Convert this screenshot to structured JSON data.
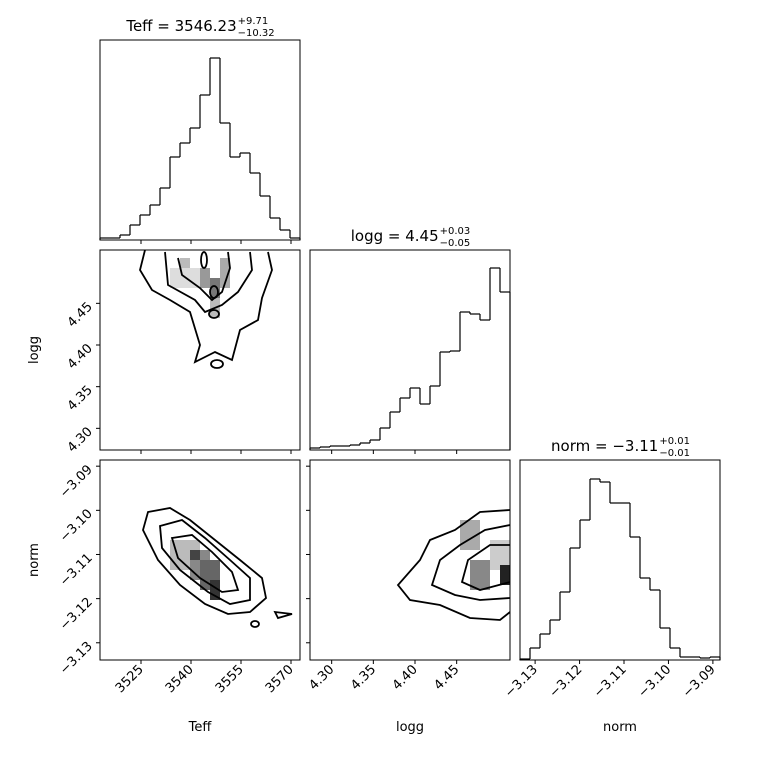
{
  "chart_data": [
    {
      "type": "histogram",
      "title": "Teff = 3546.23",
      "title_upper": "+9.71",
      "title_lower": "−10.32",
      "color": "#000000",
      "bins": [
        3512.7,
        3515.7,
        3518.7,
        3521.7,
        3524.7,
        3527.7,
        3530.7,
        3533.7,
        3536.7,
        3539.7,
        3542.7,
        3545.7,
        3548.7,
        3551.7,
        3554.7,
        3557.7,
        3560.7,
        3563.7,
        3566.7,
        3569.7,
        3572.7
      ],
      "counts": [
        2,
        2,
        5,
        15,
        25,
        35,
        52,
        83,
        97,
        112,
        145,
        182,
        117,
        83,
        87,
        67,
        44,
        22,
        10,
        2
      ],
      "xlim": [
        3512.7,
        3572.7
      ],
      "ylim": [
        0,
        200
      ]
    },
    {
      "type": "histogram",
      "title": "logg = 4.45",
      "title_upper": "+0.03",
      "title_lower": "−0.05",
      "color": "#000000",
      "bins": [
        4.274,
        4.286,
        4.298,
        4.31,
        4.322,
        4.334,
        4.346,
        4.358,
        4.37,
        4.382,
        4.394,
        4.406,
        4.418,
        4.43,
        4.442,
        4.454,
        4.466,
        4.478,
        4.49,
        4.502,
        4.514
      ],
      "counts": [
        2,
        3,
        4,
        4,
        5,
        7,
        10,
        22,
        38,
        52,
        62,
        46,
        64,
        98,
        99,
        138,
        136,
        130,
        182,
        158
      ],
      "xlim": [
        4.274,
        4.514
      ],
      "ylim": [
        0,
        200
      ]
    },
    {
      "type": "histogram",
      "title": "norm = −3.11",
      "title_upper": "+0.01",
      "title_lower": "−0.01",
      "color": "#000000",
      "xlabel": "norm",
      "bins": [
        -3.1334,
        -3.13115,
        -3.1289,
        -3.12665,
        -3.1244,
        -3.12215,
        -3.1199,
        -3.11765,
        -3.1154,
        -3.11315,
        -3.1109,
        -3.10865,
        -3.1064,
        -3.10415,
        -3.1019,
        -3.09965,
        -3.0974,
        -3.09515,
        -3.0929,
        -3.09065,
        -3.0884
      ],
      "counts": [
        1,
        12,
        26,
        40,
        68,
        112,
        140,
        181,
        178,
        157,
        157,
        123,
        82,
        70,
        32,
        12,
        3,
        3,
        2,
        3
      ],
      "xlim": [
        -3.1334,
        -3.0884
      ],
      "ylim": [
        0,
        200
      ],
      "xticks": [
        {
          "value": -3.13,
          "label": "−3.13"
        },
        {
          "value": -3.12,
          "label": "−3.12"
        },
        {
          "value": -3.11,
          "label": "−3.11"
        },
        {
          "value": -3.1,
          "label": "−3.10"
        },
        {
          "value": -3.09,
          "label": "−3.09"
        }
      ]
    },
    {
      "type": "hist2d",
      "ylabel": "logg",
      "xlim": [
        3512.7,
        3572.7
      ],
      "ylim": [
        4.274,
        4.514
      ],
      "yticks": [
        {
          "value": 4.3,
          "label": "4.30"
        },
        4.35,
        {
          "value": 4.4,
          "label": "4.40"
        },
        4.45
      ]
    },
    {
      "type": "hist2d",
      "xlabel": "Teff",
      "ylabel": "norm",
      "xlim": [
        3512.7,
        3572.7
      ],
      "ylim": [
        -3.1339,
        -3.0886
      ],
      "xticks": [
        3525,
        3540,
        3555,
        3570
      ],
      "yticks": [
        {
          "value": -3.13,
          "label": "−3.13"
        },
        {
          "value": -3.12,
          "label": "−3.12"
        },
        {
          "value": -3.11,
          "label": "−3.11"
        },
        {
          "value": -3.1,
          "label": "−3.10"
        },
        {
          "value": -3.09,
          "label": "−3.09"
        }
      ]
    },
    {
      "type": "hist2d",
      "xlabel": "logg",
      "xlim": [
        4.274,
        4.514
      ],
      "ylim": [
        -3.1339,
        -3.0886
      ],
      "xticks": [
        {
          "value": 4.3,
          "label": "4.30"
        },
        4.35,
        {
          "value": 4.4,
          "label": "4.40"
        },
        4.45
      ]
    }
  ]
}
